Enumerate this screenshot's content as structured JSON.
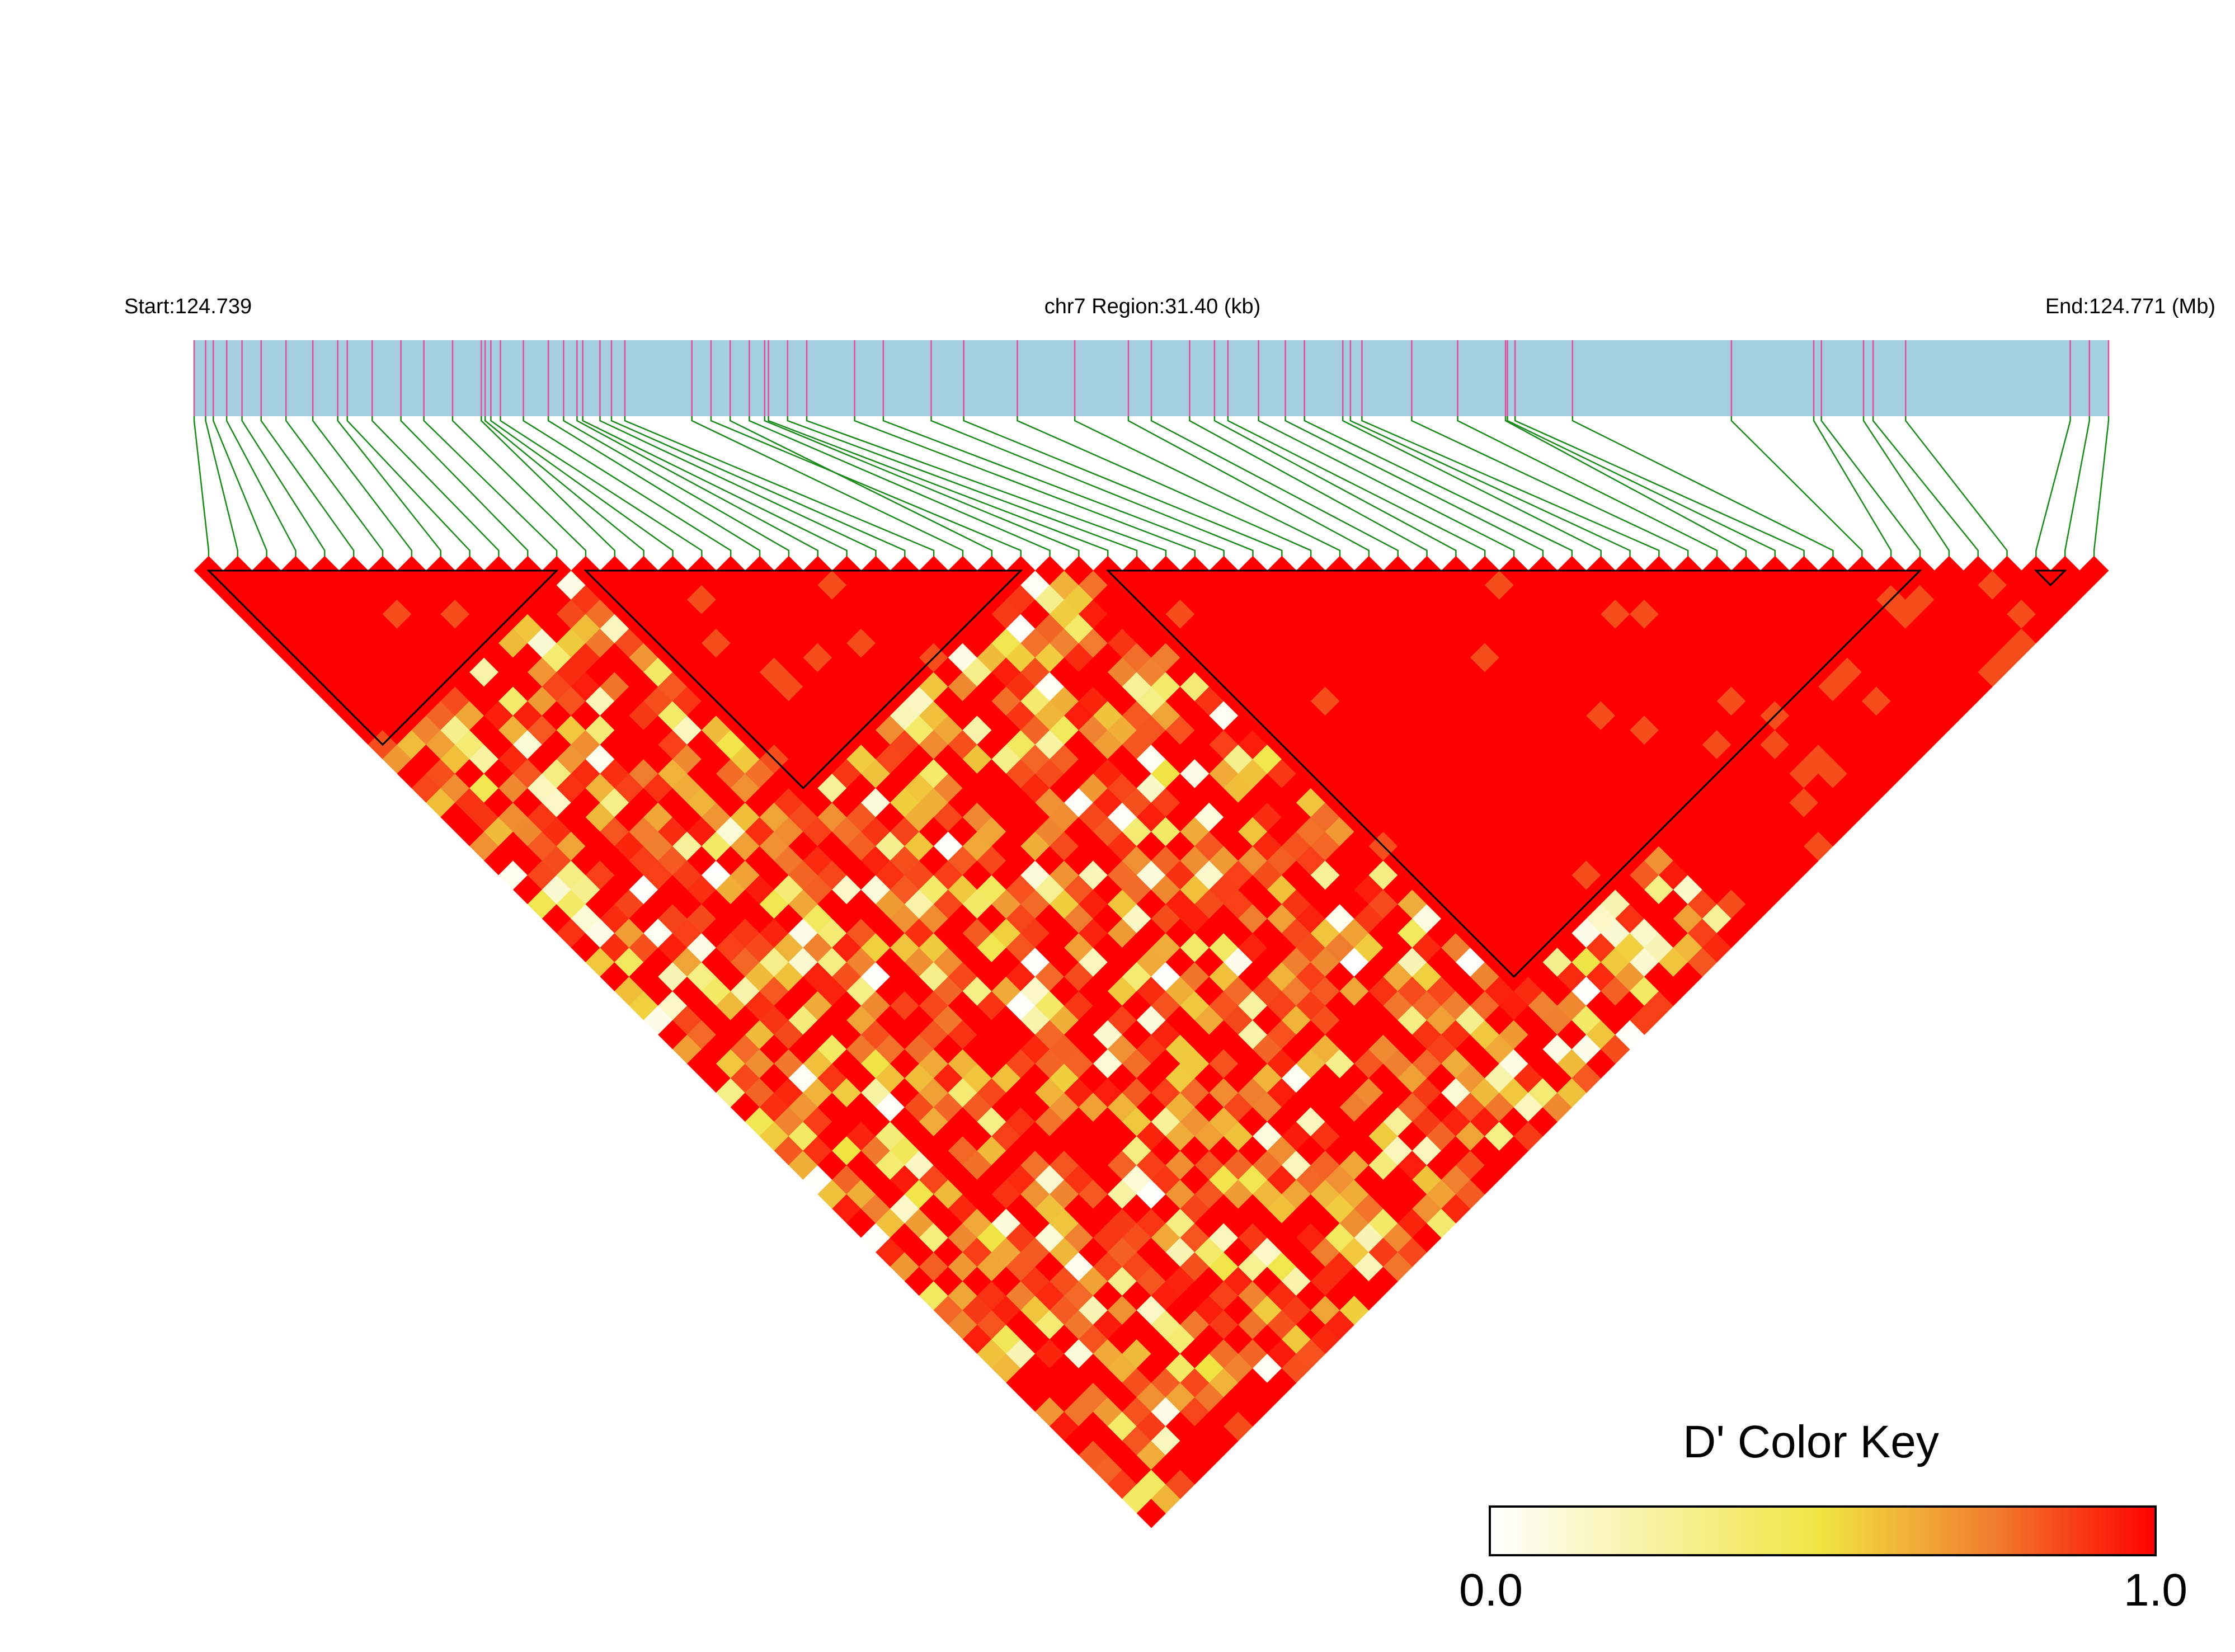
{
  "chart_data": {
    "type": "heatmap",
    "title": "",
    "region": {
      "start_label": "Start:124.739",
      "center_label": "chr7 Region:31.40 (kb)",
      "end_label": "End:124.771 (Mb)",
      "start_mb": 124.739,
      "end_mb": 124.771,
      "chromosome": "chr7",
      "region_kb": 31.4
    },
    "snp_count": 66,
    "snp_positions_fraction": [
      0.0,
      0.006,
      0.01,
      0.017,
      0.025,
      0.035,
      0.048,
      0.062,
      0.075,
      0.08,
      0.093,
      0.108,
      0.12,
      0.135,
      0.15,
      0.152,
      0.155,
      0.16,
      0.172,
      0.185,
      0.193,
      0.2,
      0.203,
      0.212,
      0.218,
      0.225,
      0.26,
      0.28,
      0.27,
      0.29,
      0.298,
      0.3,
      0.31,
      0.32,
      0.345,
      0.36,
      0.385,
      0.402,
      0.43,
      0.46,
      0.488,
      0.5,
      0.52,
      0.533,
      0.54,
      0.556,
      0.57,
      0.58,
      0.6,
      0.604,
      0.61,
      0.636,
      0.66,
      0.685,
      0.686,
      0.69,
      0.72,
      0.803,
      0.846,
      0.85,
      0.872,
      0.877,
      0.894,
      0.98,
      0.99,
      1.0
    ],
    "color_key": {
      "title": "D' Color Key",
      "min_label": "0.0",
      "max_label": "1.0",
      "min": 0.0,
      "max": 1.0,
      "stops": [
        "#ffffff",
        "#f0e442",
        "#f08030",
        "#ff0000"
      ]
    },
    "colors": {
      "strong_ld": "#ff0000",
      "track_fill": "#a6cee3",
      "snp_tick": "#e0509a",
      "connector": "#1a8a1a",
      "block_outline": "#000000"
    },
    "blocks": [
      {
        "first_snp": 1,
        "last_snp": 13
      },
      {
        "first_snp": 14,
        "last_snp": 29
      },
      {
        "first_snp": 32,
        "last_snp": 60
      },
      {
        "first_snp": 64,
        "last_snp": 65
      }
    ]
  }
}
